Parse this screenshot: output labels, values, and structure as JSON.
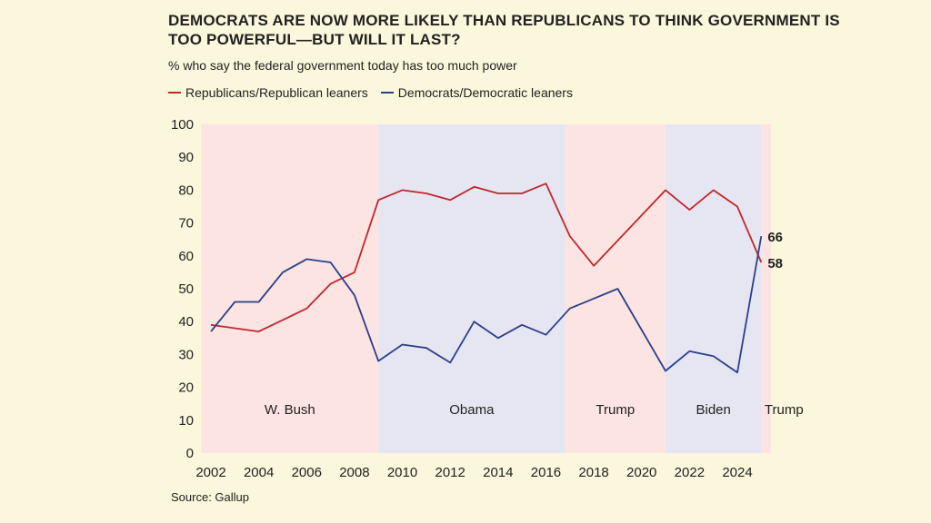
{
  "chart_data": {
    "type": "line",
    "title": "DEMOCRATS ARE NOW MORE LIKELY THAN REPUBLICANS TO THINK GOVERNMENT IS TOO POWERFUL—BUT WILL IT LAST?",
    "subtitle": "% who say the federal government today has too much power",
    "source": "Source: Gallup",
    "ylim": [
      0,
      100
    ],
    "xlim": [
      2002,
      2025.4
    ],
    "y_ticks": [
      0,
      10,
      20,
      30,
      40,
      50,
      60,
      70,
      80,
      90,
      100
    ],
    "x_ticks": [
      2002,
      2004,
      2006,
      2008,
      2010,
      2012,
      2014,
      2016,
      2018,
      2020,
      2022,
      2024
    ],
    "grid": false,
    "legend_position": "top-left",
    "colors": {
      "republican": "#c0272d",
      "democrat": "#2b3f8c",
      "republican_shade": "#fbe4e1",
      "democrat_shade": "#e6e6f2",
      "axis_text": "#222222"
    },
    "periods": [
      {
        "label": "W. Bush",
        "start": 2001.6,
        "end": 2009.0,
        "party": "republican"
      },
      {
        "label": "Obama",
        "start": 2009.0,
        "end": 2016.8,
        "party": "democrat"
      },
      {
        "label": "Trump",
        "start": 2016.8,
        "end": 2021.0,
        "party": "republican"
      },
      {
        "label": "Biden",
        "start": 2021.0,
        "end": 2025.0,
        "party": "democrat"
      },
      {
        "label": "Trump",
        "start": 2025.0,
        "end": 2025.4,
        "party": "republican"
      }
    ],
    "series": [
      {
        "name": "Republicans/Republican leaners",
        "color_key": "republican",
        "points": [
          [
            2002,
            39
          ],
          [
            2004,
            37
          ],
          [
            2005,
            40.5
          ],
          [
            2006,
            44
          ],
          [
            2007,
            51.5
          ],
          [
            2008,
            55
          ],
          [
            2009,
            77
          ],
          [
            2010,
            80
          ],
          [
            2011,
            79
          ],
          [
            2012,
            77
          ],
          [
            2013,
            81
          ],
          [
            2014,
            79
          ],
          [
            2015,
            79
          ],
          [
            2016,
            82
          ],
          [
            2017,
            66
          ],
          [
            2018,
            57
          ],
          [
            2021,
            80
          ],
          [
            2022,
            74
          ],
          [
            2023,
            80
          ],
          [
            2024,
            75
          ],
          [
            2025,
            58
          ]
        ],
        "end_label": "58"
      },
      {
        "name": "Democrats/Democratic leaners",
        "color_key": "democrat",
        "points": [
          [
            2002,
            37
          ],
          [
            2003,
            46
          ],
          [
            2004,
            46
          ],
          [
            2005,
            55
          ],
          [
            2006,
            59
          ],
          [
            2007,
            58
          ],
          [
            2008,
            48
          ],
          [
            2009,
            28
          ],
          [
            2010,
            33
          ],
          [
            2011,
            32
          ],
          [
            2012,
            27.5
          ],
          [
            2013,
            40
          ],
          [
            2014,
            35
          ],
          [
            2015,
            39
          ],
          [
            2016,
            36
          ],
          [
            2017,
            44
          ],
          [
            2019,
            50
          ],
          [
            2021,
            25
          ],
          [
            2022,
            31
          ],
          [
            2023,
            29.5
          ],
          [
            2024,
            24.5
          ],
          [
            2025,
            66
          ]
        ],
        "end_label": "66"
      }
    ]
  }
}
